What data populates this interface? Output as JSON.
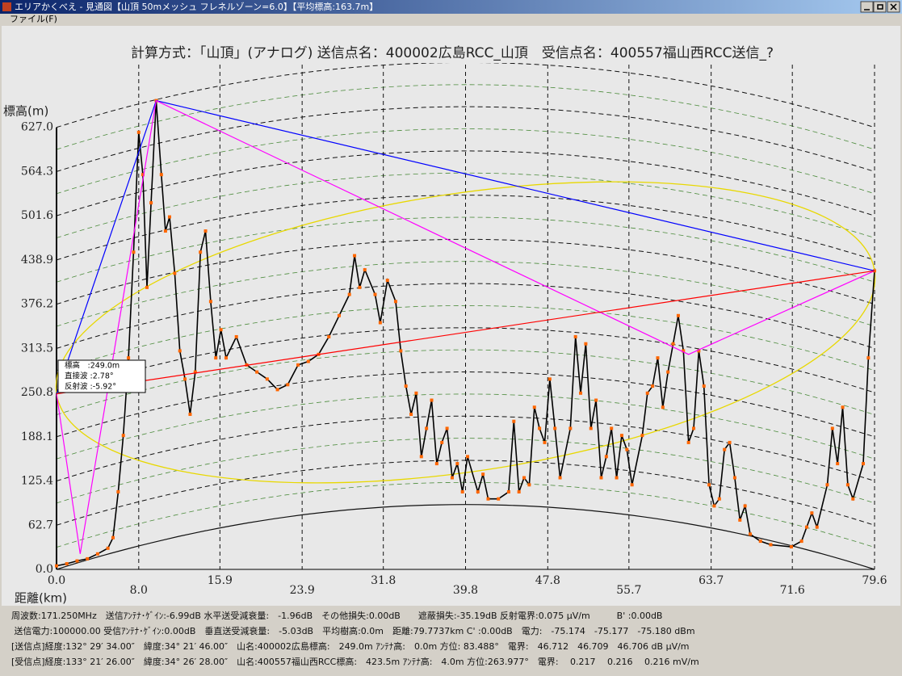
{
  "window": {
    "title": "エリアかくべえ - 見通図【山頂 50mメッシュ フレネルゾーン=6.0】【平均標高:163.7m】",
    "menu": [
      "ファイル(F)"
    ]
  },
  "chart_data": {
    "type": "line",
    "title": "計算方式：「山頂」(アナログ) 送信点名：400002広島RCC_山頂　受信点名：400557福山西RCC送信_?",
    "y_label": "標高(m)",
    "x_label": "距離(km)",
    "xlim": [
      0,
      79.6
    ],
    "ylim": [
      0,
      700
    ],
    "xticks": [
      {
        "value": 0,
        "label": "0.0"
      },
      {
        "value": 8,
        "label": "8.0"
      },
      15.9,
      23.9,
      31.8,
      39.8,
      47.8,
      55.7,
      63.7,
      71.6,
      79.6
    ],
    "yticks": [
      {
        "value": 0,
        "label": "0.0"
      },
      62.7,
      125.4,
      188.1,
      250.8,
      313.5,
      376.2,
      438.9,
      501.6,
      564.3,
      {
        "value": 627,
        "label": "627.0"
      }
    ],
    "color": "#000000",
    "marker_color": "#ff6600",
    "x": [
      0,
      1,
      2,
      3,
      4,
      5,
      5.5,
      6,
      6.5,
      7,
      7.5,
      8,
      8.4,
      8.8,
      9.2,
      9.7,
      10.2,
      10.6,
      11,
      11.5,
      12,
      12.5,
      13,
      13.5,
      14,
      14.5,
      15,
      15.5,
      16,
      16.5,
      17.5,
      18.5,
      19.5,
      20.5,
      21.5,
      22.5,
      23.5,
      24.5,
      25.5,
      26.5,
      27.5,
      28.5,
      29,
      29.5,
      30,
      31,
      31.5,
      32.2,
      33,
      33.5,
      34,
      34.5,
      35,
      35.5,
      36,
      36.5,
      37,
      37.5,
      38,
      38.5,
      39,
      39.5,
      40,
      41,
      41.5,
      42,
      43,
      44,
      44.5,
      45,
      45.5,
      46,
      46.5,
      47,
      47.5,
      48,
      48.5,
      49,
      50,
      50.5,
      51,
      51.5,
      52,
      52.5,
      53,
      53.5,
      54,
      54.5,
      55,
      55.5,
      56,
      57,
      57.5,
      58,
      58.5,
      59,
      59.5,
      60,
      60.5,
      61,
      61.5,
      62,
      62.5,
      63,
      63.5,
      64,
      64.5,
      65,
      65.5,
      66,
      66.5,
      67,
      67.5,
      68.5,
      69.5,
      71.5,
      72.5,
      73,
      73.5,
      74,
      75,
      75.5,
      76,
      76.5,
      77,
      77.5,
      78.5,
      79,
      79.6
    ],
    "y": [
      5,
      8,
      12,
      15,
      22,
      30,
      45,
      110,
      190,
      300,
      450,
      620,
      560,
      400,
      520,
      665,
      560,
      480,
      500,
      420,
      310,
      270,
      220,
      280,
      450,
      480,
      380,
      300,
      340,
      300,
      330,
      290,
      280,
      270,
      255,
      262,
      290,
      295,
      305,
      330,
      360,
      390,
      445,
      400,
      425,
      390,
      350,
      410,
      380,
      310,
      260,
      220,
      250,
      160,
      200,
      240,
      150,
      180,
      200,
      130,
      150,
      110,
      160,
      110,
      135,
      100,
      100,
      110,
      210,
      110,
      130,
      120,
      230,
      200,
      180,
      270,
      200,
      130,
      200,
      330,
      250,
      320,
      200,
      240,
      130,
      160,
      200,
      130,
      190,
      170,
      120,
      190,
      250,
      260,
      300,
      230,
      280,
      320,
      360,
      310,
      180,
      200,
      310,
      260,
      120,
      90,
      100,
      170,
      180,
      130,
      70,
      90,
      50,
      40,
      35,
      32,
      40,
      60,
      80,
      60,
      120,
      200,
      150,
      230,
      120,
      100,
      150,
      300,
      423.5
    ],
    "lines": [
      {
        "color": "#0000ff",
        "x": [
          0,
          9.7,
          79.6
        ],
        "y": [
          249,
          665,
          423.5
        ]
      },
      {
        "color": "#ff00ff",
        "x": [
          0,
          2.3,
          9.7,
          61.5,
          79.6
        ],
        "y": [
          249,
          22,
          665,
          305,
          423.5
        ]
      },
      {
        "color": "#ff0000",
        "x": [
          0,
          79.6
        ],
        "y": [
          249,
          423.5
        ]
      }
    ]
  },
  "tooltip": {
    "lines": [
      "標高　:249.0m",
      "直接波 :2.78°",
      "反射波 :-5.92°"
    ]
  },
  "info": {
    "lines": [
      "周波数:171.250MHz　送信ｱﾝﾃﾅ･ｹﾞｲﾝ:-6.99dB 水平送受減衰量:　-1.96dB　その他損失:0.00dB　　遮蔽損失:-35.19dB 反射電界:0.075 μV/m　　　B' :0.00dB",
      " 送信電力:100000.00 受信ｱﾝﾃﾅ･ｹﾞｲﾝ:0.00dB　垂直送受減衰量:　-5.03dB　平均樹高:0.0m　距離:79.7737km C' :0.00dB　電力:　-75.174　-75.177　-75.180 dBm",
      "[送信点]経度:132° 29′ 34.00″　緯度:34° 21′ 46.00″　山名:400002広島標高:　249.0m ｱﾝﾃﾅ高:　0.0m 方位: 83.488°　電界:　46.712　46.709　46.706 dB μV/m",
      "[受信点]経度:133° 21′ 26.00″　緯度:34° 26′ 28.00″　山名:400557福山西RCC標高:　423.5m ｱﾝﾃﾅ高:　4.0m 方位:263.977°　電界:　 0.217　 0.216　 0.216 mV/m"
    ]
  }
}
